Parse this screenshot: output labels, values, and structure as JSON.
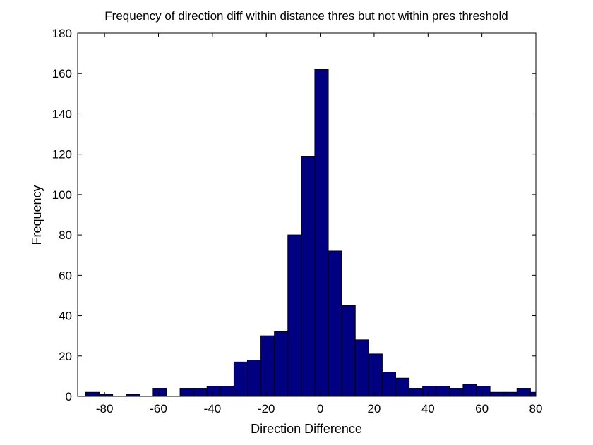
{
  "chart_data": {
    "type": "bar",
    "title": "Frequency of direction diff within distance thres but not within pres threshold",
    "xlabel": "Direction Difference",
    "ylabel": "Frequency",
    "xlim": [
      -90,
      80
    ],
    "ylim": [
      0,
      180
    ],
    "xticks": [
      -80,
      -60,
      -40,
      -20,
      0,
      20,
      40,
      60,
      80
    ],
    "yticks": [
      0,
      20,
      40,
      60,
      80,
      100,
      120,
      140,
      160,
      180
    ],
    "bin_centers": [
      -84.5,
      -79.5,
      -74.5,
      -69.5,
      -64.5,
      -59.5,
      -54.5,
      -49.5,
      -44.5,
      -39.5,
      -34.5,
      -29.5,
      -24.5,
      -19.5,
      -14.5,
      -9.5,
      -4.5,
      0.5,
      5.5,
      10.5,
      15.5,
      20.5,
      25.5,
      30.5,
      35.5,
      40.5,
      45.5,
      50.5,
      55.5,
      60.5,
      65.5,
      70.5,
      75.5,
      80.5
    ],
    "bin_width": 5,
    "values": [
      2,
      1,
      0,
      1,
      0,
      4,
      0,
      4,
      4,
      5,
      5,
      17,
      18,
      30,
      32,
      80,
      119,
      162,
      72,
      45,
      28,
      21,
      12,
      9,
      4,
      5,
      5,
      4,
      6,
      5,
      2,
      2,
      4,
      2
    ],
    "grid": false,
    "bar_color": "#000080",
    "edge_color": "#000000"
  }
}
